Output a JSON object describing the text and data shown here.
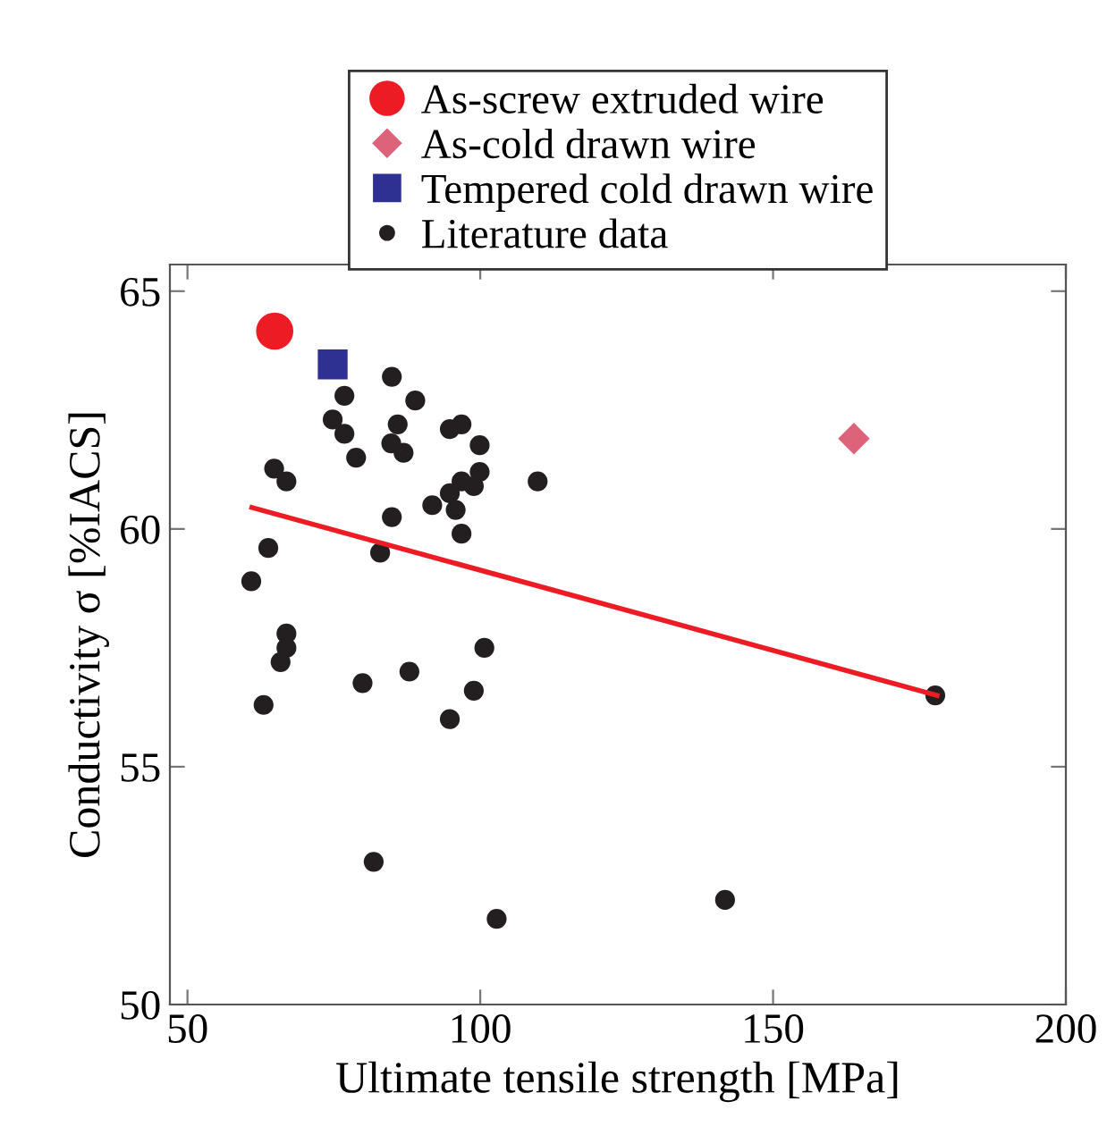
{
  "chart_data": {
    "type": "scatter",
    "xlabel": "Ultimate tensile strength [MPa]",
    "ylabel": "Conductivity σ [%IACS]",
    "xlim": [
      47,
      200
    ],
    "ylim": [
      50,
      65.56
    ],
    "xticks": [
      50,
      100,
      150,
      200
    ],
    "yticks": [
      50,
      55,
      60,
      65
    ],
    "grid": false,
    "legend": "top",
    "series": [
      {
        "name": "As-screw extruded wire",
        "color": "#ed1c24",
        "marker": "circle",
        "x": [
          64.9
        ],
        "values": [
          64.16
        ]
      },
      {
        "name": "As-cold drawn wire",
        "color": "#dd637a",
        "marker": "diamond",
        "x": [
          163.8
        ],
        "values": [
          61.9
        ]
      },
      {
        "name": "Tempered cold drawn wire",
        "color": "#2e3192",
        "marker": "square",
        "x": [
          74.8
        ],
        "values": [
          63.46
        ]
      },
      {
        "name": "Literature data",
        "color": "#231f20",
        "marker": "circle",
        "x": [
          84.9,
          76.8,
          88.9,
          74.8,
          85.9,
          76.8,
          94.8,
          96.8,
          84.8,
          99.9,
          86.9,
          78.8,
          99.9,
          64.8,
          66.9,
          94.8,
          96.8,
          98.9,
          94.8,
          109.8,
          91.8,
          95.8,
          84.9,
          96.8,
          63.8,
          82.9,
          60.9,
          66.9,
          66.9,
          65.9,
          79.9,
          87.9,
          100.7,
          98.9,
          94.8,
          63.0,
          81.8,
          102.8,
          141.8,
          177.7
        ],
        "values": [
          63.2,
          62.8,
          62.7,
          62.3,
          62.2,
          62.0,
          62.1,
          62.2,
          61.8,
          61.76,
          61.6,
          61.5,
          61.2,
          61.27,
          61.0,
          null,
          61.0,
          60.9,
          60.75,
          61.0,
          60.5,
          60.4,
          60.25,
          59.9,
          59.6,
          59.5,
          58.9,
          57.8,
          57.5,
          57.2,
          56.76,
          57.0,
          57.5,
          56.6,
          56.0,
          56.3,
          53.0,
          51.8,
          52.2,
          56.5
        ]
      },
      {
        "type": "line",
        "color": "#ed1c24",
        "x": [
          61,
          178
        ],
        "values": [
          60.45,
          56.5
        ]
      }
    ]
  }
}
